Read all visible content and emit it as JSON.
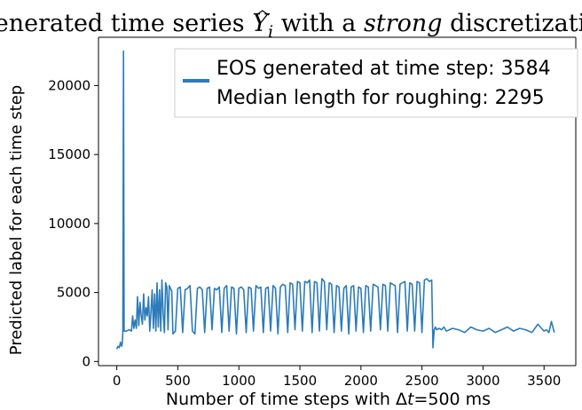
{
  "chart_data": {
    "type": "line",
    "title": {
      "prefix": "Generated time series ",
      "symbol": "Y",
      "subscript": "i",
      "middle": " with a ",
      "emphasis": "strong",
      "suffix": " discretization"
    },
    "xlabel": {
      "prefix": "Number of time steps with Δ",
      "symbol": "t",
      "suffix": "=500 ms"
    },
    "ylabel": "Predicted label for each time step",
    "xlim": [
      -150,
      3760
    ],
    "ylim": [
      -300,
      23500
    ],
    "xticks": [
      0,
      500,
      1000,
      1500,
      2000,
      2500,
      3000,
      3500
    ],
    "yticks": [
      0,
      5000,
      10000,
      15000,
      20000
    ],
    "grid": false,
    "legend": {
      "placement": "top-right",
      "entries": [
        "EOS generated at time step: 3584",
        "Median length for roughing: 2295"
      ]
    },
    "series": [
      {
        "color": "#2b7bba",
        "x": [
          0,
          10,
          20,
          30,
          40,
          45,
          50,
          55,
          60,
          65,
          70,
          80,
          100,
          120,
          130,
          140,
          150,
          160,
          170,
          180,
          190,
          200,
          210,
          220,
          230,
          240,
          250,
          260,
          270,
          280,
          290,
          300,
          310,
          320,
          330,
          340,
          350,
          360,
          370,
          380,
          390,
          400,
          410,
          420,
          430,
          440,
          450,
          460,
          480,
          500,
          520,
          540,
          560,
          580,
          600,
          620,
          640,
          660,
          680,
          700,
          720,
          740,
          760,
          780,
          800,
          820,
          840,
          860,
          880,
          900,
          920,
          940,
          960,
          980,
          1000,
          1020,
          1040,
          1060,
          1080,
          1100,
          1120,
          1140,
          1160,
          1180,
          1200,
          1220,
          1240,
          1260,
          1280,
          1300,
          1320,
          1340,
          1360,
          1380,
          1400,
          1420,
          1440,
          1460,
          1480,
          1500,
          1520,
          1540,
          1560,
          1580,
          1600,
          1620,
          1640,
          1660,
          1680,
          1700,
          1720,
          1740,
          1760,
          1780,
          1800,
          1820,
          1840,
          1860,
          1880,
          1900,
          1920,
          1940,
          1960,
          1980,
          2000,
          2020,
          2040,
          2060,
          2080,
          2100,
          2120,
          2140,
          2160,
          2180,
          2200,
          2220,
          2240,
          2260,
          2280,
          2300,
          2320,
          2340,
          2360,
          2380,
          2400,
          2420,
          2440,
          2460,
          2480,
          2500,
          2520,
          2540,
          2560,
          2580,
          2590,
          2600,
          2610,
          2620,
          2640,
          2660,
          2680,
          2700,
          2750,
          2800,
          2850,
          2900,
          2950,
          3000,
          3050,
          3100,
          3150,
          3200,
          3250,
          3300,
          3350,
          3400,
          3450,
          3500,
          3520,
          3540,
          3560,
          3584
        ],
        "y": [
          900,
          1100,
          1000,
          1400,
          1100,
          1300,
          2200,
          22500,
          2200,
          2200,
          2200,
          2200,
          2300,
          2200,
          3300,
          2400,
          3000,
          2400,
          4700,
          2600,
          4300,
          3300,
          2700,
          4900,
          3000,
          3900,
          3300,
          4700,
          2200,
          3600,
          5200,
          2400,
          4900,
          2200,
          5700,
          2500,
          5200,
          2200,
          5900,
          3500,
          2100,
          5700,
          5400,
          2300,
          5500,
          5300,
          5100,
          2000,
          2200,
          5300,
          5400,
          2100,
          5200,
          5300,
          5500,
          2200,
          2000,
          5300,
          5400,
          5200,
          2100,
          5300,
          5400,
          2300,
          5300,
          5200,
          5400,
          2100,
          5300,
          5500,
          2200,
          5400,
          5300,
          2000,
          5300,
          5400,
          5200,
          2100,
          5400,
          5300,
          2200,
          5500,
          5300,
          5400,
          2100,
          5300,
          5400,
          2200,
          5500,
          5300,
          2000,
          5400,
          5600,
          5500,
          2100,
          5700,
          5600,
          2300,
          5800,
          5700,
          2200,
          5800,
          5700,
          5900,
          2100,
          5800,
          5700,
          2200,
          6000,
          5800,
          2300,
          5700,
          5600,
          2100,
          5500,
          5400,
          2200,
          5300,
          5500,
          2000,
          5400,
          5500,
          2200,
          5400,
          5300,
          2100,
          5500,
          5400,
          2200,
          5600,
          5500,
          5400,
          2300,
          5600,
          5500,
          2200,
          5700,
          5600,
          5500,
          2100,
          5600,
          5700,
          5800,
          2200,
          5700,
          5600,
          2200,
          5800,
          5700,
          2100,
          5900,
          6000,
          5800,
          5900,
          1000,
          2300,
          2500,
          2300,
          2400,
          2300,
          2500,
          2200,
          2400,
          2300,
          2100,
          2500,
          2300,
          2200,
          2400,
          2100,
          2300,
          2500,
          2200,
          2400,
          2300,
          2100,
          2700,
          2200,
          2300,
          2100,
          2900,
          2100
        ]
      }
    ]
  }
}
